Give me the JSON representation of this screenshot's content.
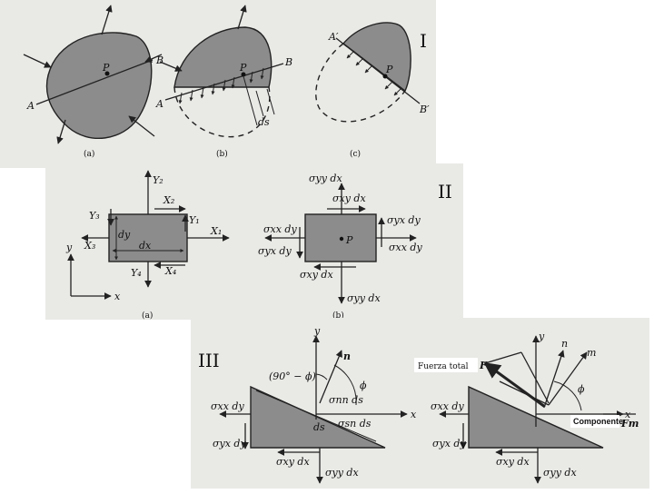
{
  "panels": {
    "I": {
      "numeral": "I",
      "fig_a": {
        "caption": "(a)",
        "label_p": "P",
        "label_a": "A",
        "label_b": "B"
      },
      "fig_b": {
        "caption": "(b)",
        "label_p": "P",
        "label_a": "A",
        "label_b": "B",
        "label_ds": "ds"
      },
      "fig_c": {
        "caption": "(c)",
        "label_p": "P",
        "label_a": "A′",
        "label_b": "B′"
      }
    },
    "II": {
      "numeral": "II",
      "caption_a": "(a)",
      "caption_b": "(b)",
      "left": {
        "x1": "X₁",
        "x2": "X₂",
        "x3": "X₃",
        "x4": "X₄",
        "y1": "Y₁",
        "y2": "Y₂",
        "y3": "Y₃",
        "y4": "Y₄",
        "dx": "dx",
        "dy": "dy",
        "axis_x": "x",
        "axis_y": "y"
      },
      "right": {
        "syy_top": "σyy dx",
        "sxy_top": "σxy dx",
        "sxx_left": "σxx dy",
        "syx_left": "σyx dy",
        "syx_right": "σyx dy",
        "sxx_right": "σxx dy",
        "sxy_bottom": "σxy dx",
        "syy_bottom": "σyy dx",
        "point": "P"
      }
    },
    "III": {
      "numeral": "III",
      "left": {
        "axis_y": "y",
        "axis_x": "x",
        "angle_label": "(90° − ϕ)",
        "n": "n",
        "phi": "ϕ",
        "snn": "σnn ds",
        "ssn": "σsn ds",
        "ds": "ds",
        "sxx": "σxx dy",
        "syx": "σyx dy",
        "sxy": "σxy dx",
        "syy": "σyy dx"
      },
      "right": {
        "fuerza_total": "Fuerza total",
        "F": "F",
        "n": "n",
        "m": "m",
        "y": "y",
        "x": "x",
        "phi": "ϕ",
        "componente": "Componente",
        "Fm": "Fm",
        "sxx": "σxx dy",
        "syx": "σyx dy",
        "sxy": "σxy dx",
        "syy": "σyy dx"
      }
    }
  }
}
